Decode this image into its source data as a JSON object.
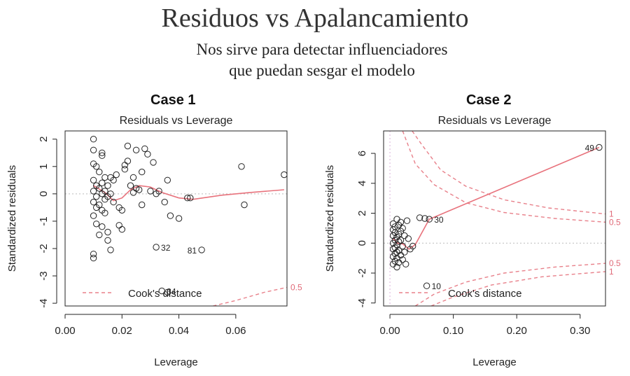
{
  "slide": {
    "title": "Residuos vs Apalancamiento",
    "subtitle_line1": "Nos sirve para detectar influenciadores",
    "subtitle_line2": "que puedan sesgar el modelo"
  },
  "chart_data": [
    {
      "type": "scatter",
      "case_label": "Case 1",
      "title": "Residuals vs Leverage",
      "xlabel": "Leverage",
      "ylabel": "Standardized residuals",
      "xlim": [
        0.0,
        0.078
      ],
      "ylim": [
        -4.1,
        2.3
      ],
      "xticks": [
        0.0,
        0.02,
        0.04,
        0.06
      ],
      "xtick_labels": [
        "0.00",
        "0.02",
        "0.04",
        "0.06"
      ],
      "yticks": [
        -4,
        -3,
        -2,
        -1,
        0,
        1,
        2
      ],
      "ytick_labels": [
        "-4",
        "-3",
        "-2",
        "-1",
        "0",
        "1",
        "2"
      ],
      "legend": "Cook's distance",
      "points": [
        [
          0.01,
          2.0
        ],
        [
          0.01,
          1.6
        ],
        [
          0.01,
          1.1
        ],
        [
          0.011,
          1.0
        ],
        [
          0.01,
          0.5
        ],
        [
          0.011,
          0.3
        ],
        [
          0.01,
          0.1
        ],
        [
          0.011,
          -0.1
        ],
        [
          0.01,
          -0.3
        ],
        [
          0.011,
          -0.5
        ],
        [
          0.01,
          -0.8
        ],
        [
          0.011,
          -1.1
        ],
        [
          0.01,
          -2.2
        ],
        [
          0.01,
          -2.35
        ],
        [
          0.012,
          0.8
        ],
        [
          0.012,
          0.2
        ],
        [
          0.012,
          -0.4
        ],
        [
          0.012,
          -1.5
        ],
        [
          0.013,
          1.4
        ],
        [
          0.013,
          1.5
        ],
        [
          0.013,
          0.4
        ],
        [
          0.013,
          0.0
        ],
        [
          0.013,
          -0.6
        ],
        [
          0.013,
          -1.2
        ],
        [
          0.014,
          0.6
        ],
        [
          0.014,
          0.1
        ],
        [
          0.014,
          -0.2
        ],
        [
          0.014,
          -0.7
        ],
        [
          0.015,
          0.3
        ],
        [
          0.015,
          -0.1
        ],
        [
          0.015,
          -1.4
        ],
        [
          0.015,
          -1.7
        ],
        [
          0.016,
          0.6
        ],
        [
          0.016,
          0.0
        ],
        [
          0.016,
          -2.05
        ],
        [
          0.017,
          0.5
        ],
        [
          0.017,
          -0.3
        ],
        [
          0.018,
          0.7
        ],
        [
          0.019,
          -0.5
        ],
        [
          0.019,
          -1.15
        ],
        [
          0.02,
          -0.6
        ],
        [
          0.02,
          -1.3
        ],
        [
          0.021,
          0.9
        ],
        [
          0.021,
          1.05
        ],
        [
          0.022,
          1.2
        ],
        [
          0.022,
          1.75
        ],
        [
          0.023,
          0.3
        ],
        [
          0.024,
          0.6
        ],
        [
          0.024,
          0.05
        ],
        [
          0.025,
          0.2
        ],
        [
          0.025,
          1.6
        ],
        [
          0.026,
          0.15
        ],
        [
          0.027,
          0.8
        ],
        [
          0.027,
          -0.4
        ],
        [
          0.028,
          1.65
        ],
        [
          0.029,
          1.45
        ],
        [
          0.03,
          0.1
        ],
        [
          0.031,
          1.15
        ],
        [
          0.032,
          0.0
        ],
        [
          0.033,
          0.1
        ],
        [
          0.035,
          -0.3
        ],
        [
          0.036,
          0.5
        ],
        [
          0.037,
          -0.8
        ],
        [
          0.04,
          -0.9
        ],
        [
          0.043,
          -0.15
        ],
        [
          0.044,
          -0.15
        ],
        [
          0.032,
          -1.95
        ],
        [
          0.048,
          -2.05
        ],
        [
          0.034,
          -3.55
        ],
        [
          0.036,
          -3.6
        ],
        [
          0.062,
          1.0
        ],
        [
          0.063,
          -0.4
        ],
        [
          0.077,
          0.7
        ]
      ],
      "point_labels": [
        {
          "x": 0.032,
          "y": -1.95,
          "text": "32",
          "side": "right"
        },
        {
          "x": 0.048,
          "y": -2.05,
          "text": "81",
          "side": "left"
        },
        {
          "x": 0.034,
          "y": -3.55,
          "text": "34",
          "side": "right"
        }
      ],
      "smooth": [
        [
          0.01,
          0.3
        ],
        [
          0.014,
          0.05
        ],
        [
          0.017,
          -0.25
        ],
        [
          0.02,
          -0.15
        ],
        [
          0.023,
          0.15
        ],
        [
          0.026,
          0.3
        ],
        [
          0.03,
          0.25
        ],
        [
          0.034,
          0.05
        ],
        [
          0.04,
          -0.15
        ],
        [
          0.045,
          -0.2
        ],
        [
          0.055,
          -0.05
        ],
        [
          0.065,
          0.05
        ],
        [
          0.077,
          0.15
        ]
      ],
      "cook_curves": [
        {
          "label": "0.5",
          "points": [
            [
              0.052,
              -4.1
            ],
            [
              0.06,
              -3.9
            ],
            [
              0.07,
              -3.6
            ],
            [
              0.078,
              -3.42
            ]
          ]
        }
      ]
    },
    {
      "type": "scatter",
      "case_label": "Case 2",
      "title": "Residuals vs Leverage",
      "xlabel": "Leverage",
      "ylabel": "Standardized residuals",
      "xlim": [
        -0.01,
        0.34
      ],
      "ylim": [
        -4.2,
        7.5
      ],
      "xticks": [
        0.0,
        0.1,
        0.2,
        0.3
      ],
      "xtick_labels": [
        "0.00",
        "0.10",
        "0.20",
        "0.30"
      ],
      "yticks": [
        -4,
        -2,
        0,
        2,
        4,
        6
      ],
      "ytick_labels": [
        "-4",
        "-2",
        "0",
        "2",
        "4",
        "6"
      ],
      "legend": "Cook's distance",
      "points": [
        [
          0.005,
          1.3
        ],
        [
          0.005,
          0.9
        ],
        [
          0.005,
          0.5
        ],
        [
          0.005,
          0.0
        ],
        [
          0.005,
          -0.4
        ],
        [
          0.005,
          -0.9
        ],
        [
          0.005,
          -1.4
        ],
        [
          0.008,
          1.1
        ],
        [
          0.008,
          0.7
        ],
        [
          0.008,
          0.2
        ],
        [
          0.008,
          -0.3
        ],
        [
          0.008,
          -0.7
        ],
        [
          0.008,
          -1.2
        ],
        [
          0.011,
          1.6
        ],
        [
          0.011,
          0.4
        ],
        [
          0.011,
          -0.1
        ],
        [
          0.011,
          -0.6
        ],
        [
          0.011,
          -1.0
        ],
        [
          0.011,
          -1.6
        ],
        [
          0.014,
          1.2
        ],
        [
          0.014,
          0.6
        ],
        [
          0.014,
          0.1
        ],
        [
          0.014,
          -0.5
        ],
        [
          0.014,
          -1.3
        ],
        [
          0.017,
          1.4
        ],
        [
          0.017,
          0.8
        ],
        [
          0.017,
          0.2
        ],
        [
          0.017,
          -0.8
        ],
        [
          0.02,
          1.0
        ],
        [
          0.02,
          -0.2
        ],
        [
          0.02,
          -1.1
        ],
        [
          0.023,
          0.5
        ],
        [
          0.023,
          -0.6
        ],
        [
          0.025,
          -1.4
        ],
        [
          0.027,
          1.5
        ],
        [
          0.029,
          0.3
        ],
        [
          0.032,
          -0.4
        ],
        [
          0.036,
          -0.2
        ],
        [
          0.047,
          1.7
        ],
        [
          0.055,
          1.65
        ],
        [
          0.062,
          1.6
        ],
        [
          0.058,
          -2.85
        ],
        [
          0.33,
          6.4
        ]
      ],
      "point_labels": [
        {
          "x": 0.062,
          "y": 1.6,
          "text": "30",
          "side": "right"
        },
        {
          "x": 0.058,
          "y": -2.85,
          "text": "10",
          "side": "right"
        },
        {
          "x": 0.33,
          "y": 6.4,
          "text": "49",
          "side": "left"
        }
      ],
      "smooth": [
        [
          0.005,
          0.3
        ],
        [
          0.012,
          0.0
        ],
        [
          0.02,
          -0.05
        ],
        [
          0.03,
          -0.4
        ],
        [
          0.04,
          -0.1
        ],
        [
          0.062,
          1.6
        ],
        [
          0.33,
          6.4
        ]
      ],
      "cook_curves": [
        {
          "label": "1",
          "points": [
            [
              0.035,
              7.5
            ],
            [
              0.05,
              6.6
            ],
            [
              0.08,
              4.9
            ],
            [
              0.12,
              3.8
            ],
            [
              0.18,
              2.9
            ],
            [
              0.25,
              2.35
            ],
            [
              0.34,
              1.95
            ]
          ]
        },
        {
          "label": "0.5",
          "points": [
            [
              0.02,
              7.5
            ],
            [
              0.04,
              5.3
            ],
            [
              0.07,
              3.9
            ],
            [
              0.12,
              2.7
            ],
            [
              0.18,
              2.05
            ],
            [
              0.26,
              1.65
            ],
            [
              0.34,
              1.4
            ]
          ]
        },
        {
          "label": "0.5",
          "points": [
            [
              0.04,
              -4.2
            ],
            [
              0.07,
              -3.4
            ],
            [
              0.12,
              -2.6
            ],
            [
              0.18,
              -2.0
            ],
            [
              0.26,
              -1.6
            ],
            [
              0.34,
              -1.35
            ]
          ]
        },
        {
          "label": "1",
          "points": [
            [
              0.065,
              -4.2
            ],
            [
              0.1,
              -3.6
            ],
            [
              0.16,
              -2.8
            ],
            [
              0.24,
              -2.25
            ],
            [
              0.34,
              -1.9
            ]
          ]
        }
      ]
    }
  ]
}
